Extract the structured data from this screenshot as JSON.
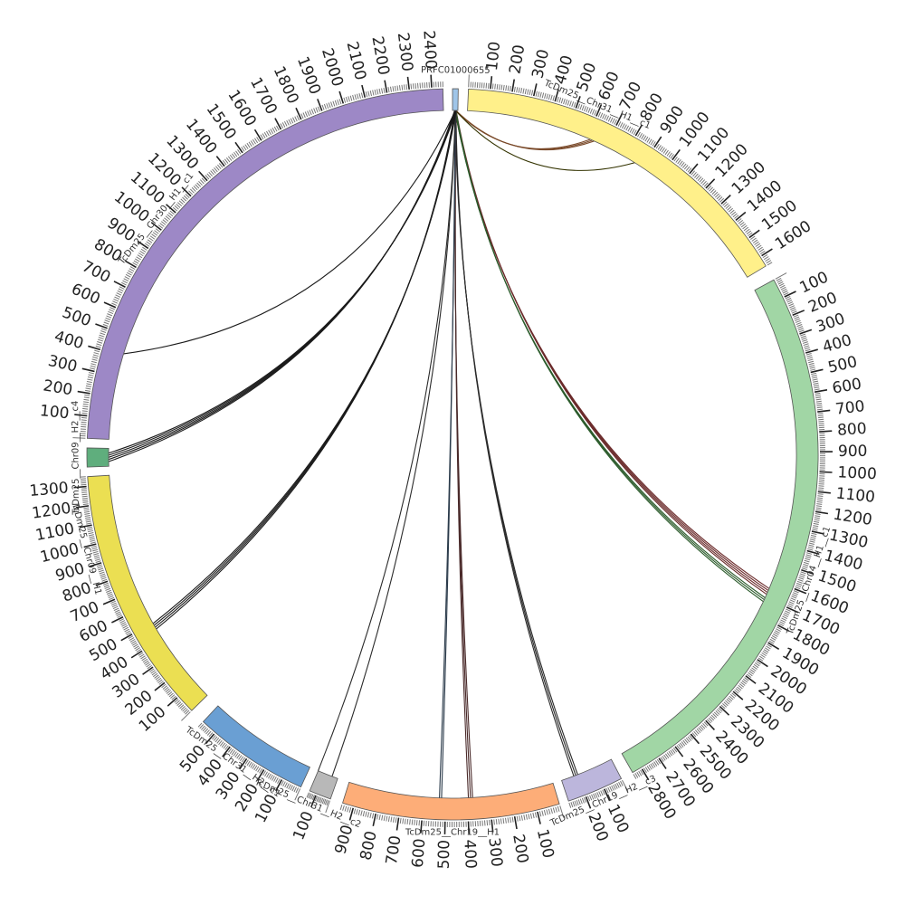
{
  "segments": [
    {
      "name": "PRFC01000655",
      "start_deg": 0.0,
      "end_deg": 0.9,
      "color": "#9fc5e8",
      "length": 0,
      "tick_step": 0,
      "label_offset_deg": 0
    },
    {
      "name": "TcDm25__Chr31__H1__c1",
      "start_deg": 2.5,
      "end_deg": 59.0,
      "color": "#fff08a",
      "length": 1650,
      "tick_step": 100,
      "label_offset_deg": 20
    },
    {
      "name": "TcDm25__Chr04__H1__c1",
      "start_deg": 61.5,
      "end_deg": 150.5,
      "color": "#a1d6a5",
      "length": 2850,
      "tick_step": 100,
      "label_offset_deg": 48
    },
    {
      "name": "TcDm25__Chr19__H2__c3",
      "start_deg": 152.5,
      "end_deg": 161.5,
      "color": "#bcb6dc",
      "length": 290,
      "tick_step": 100,
      "label_offset_deg": 4
    },
    {
      "name": "TcDm25__Chr19__H1",
      "start_deg": 163.0,
      "end_deg": 197.5,
      "color": "#fdad78",
      "length": 950,
      "tick_step": 100,
      "label_offset_deg": 17
    },
    {
      "name": "TcDm25__Chr31__H2__c2",
      "start_deg": 199.5,
      "end_deg": 203.0,
      "color": "#b8b8b8",
      "length": 150,
      "tick_step": 100,
      "label_offset_deg": 3
    },
    {
      "name": "TcDm25__Chr31__H2__c1",
      "start_deg": 204.5,
      "end_deg": 223.0,
      "color": "#6a9fd3",
      "length": 580,
      "tick_step": 100,
      "label_offset_deg": 11
    },
    {
      "name": "TcDm25__Chr09__H1",
      "start_deg": 225.5,
      "end_deg": 266.5,
      "color": "#ebdf52",
      "length": 1350,
      "tick_step": 100,
      "label_offset_deg": 30
    },
    {
      "name": "TcDm25__Chr09__H2__c4",
      "start_deg": 268.0,
      "end_deg": 271.0,
      "color": "#5fae7d",
      "length": 0,
      "tick_step": 0,
      "label_offset_deg": 1.5
    },
    {
      "name": "TcDm25__Chr30__H1__c1",
      "start_deg": 272.5,
      "end_deg": 358.5,
      "color": "#9d88c6",
      "length": 2450,
      "tick_step": 100,
      "label_offset_deg": 36
    }
  ],
  "links": [
    {
      "from_deg": 0.5,
      "to_deg": 24.0,
      "color": "#7a4a2a",
      "count": 3
    },
    {
      "from_deg": 0.5,
      "to_deg": 32.0,
      "color": "#333300",
      "count": 1
    },
    {
      "from_deg": 0.5,
      "to_deg": 113.5,
      "color": "#6b2b2b",
      "count": 4
    },
    {
      "from_deg": 0.5,
      "to_deg": 115.0,
      "color": "#2b5b2b",
      "count": 3
    },
    {
      "from_deg": 0.5,
      "to_deg": 159.0,
      "color": "#2a2a2a",
      "count": 3
    },
    {
      "from_deg": 0.5,
      "to_deg": 177.0,
      "color": "#4a2a2a",
      "count": 3
    },
    {
      "from_deg": 0.5,
      "to_deg": 182.0,
      "color": "#2a3a4a",
      "count": 2
    },
    {
      "from_deg": 0.5,
      "to_deg": 200.5,
      "color": "#2a2a2a",
      "count": 1
    },
    {
      "from_deg": 0.5,
      "to_deg": 203.0,
      "color": "#2a2a2a",
      "count": 1
    },
    {
      "from_deg": 0.5,
      "to_deg": 240.0,
      "color": "#1a1a1a",
      "count": 4
    },
    {
      "from_deg": 0.5,
      "to_deg": 269.5,
      "color": "#1a1a1a",
      "count": 5
    },
    {
      "from_deg": 0.5,
      "to_deg": 287.0,
      "color": "#1a1a1a",
      "count": 1
    }
  ]
}
